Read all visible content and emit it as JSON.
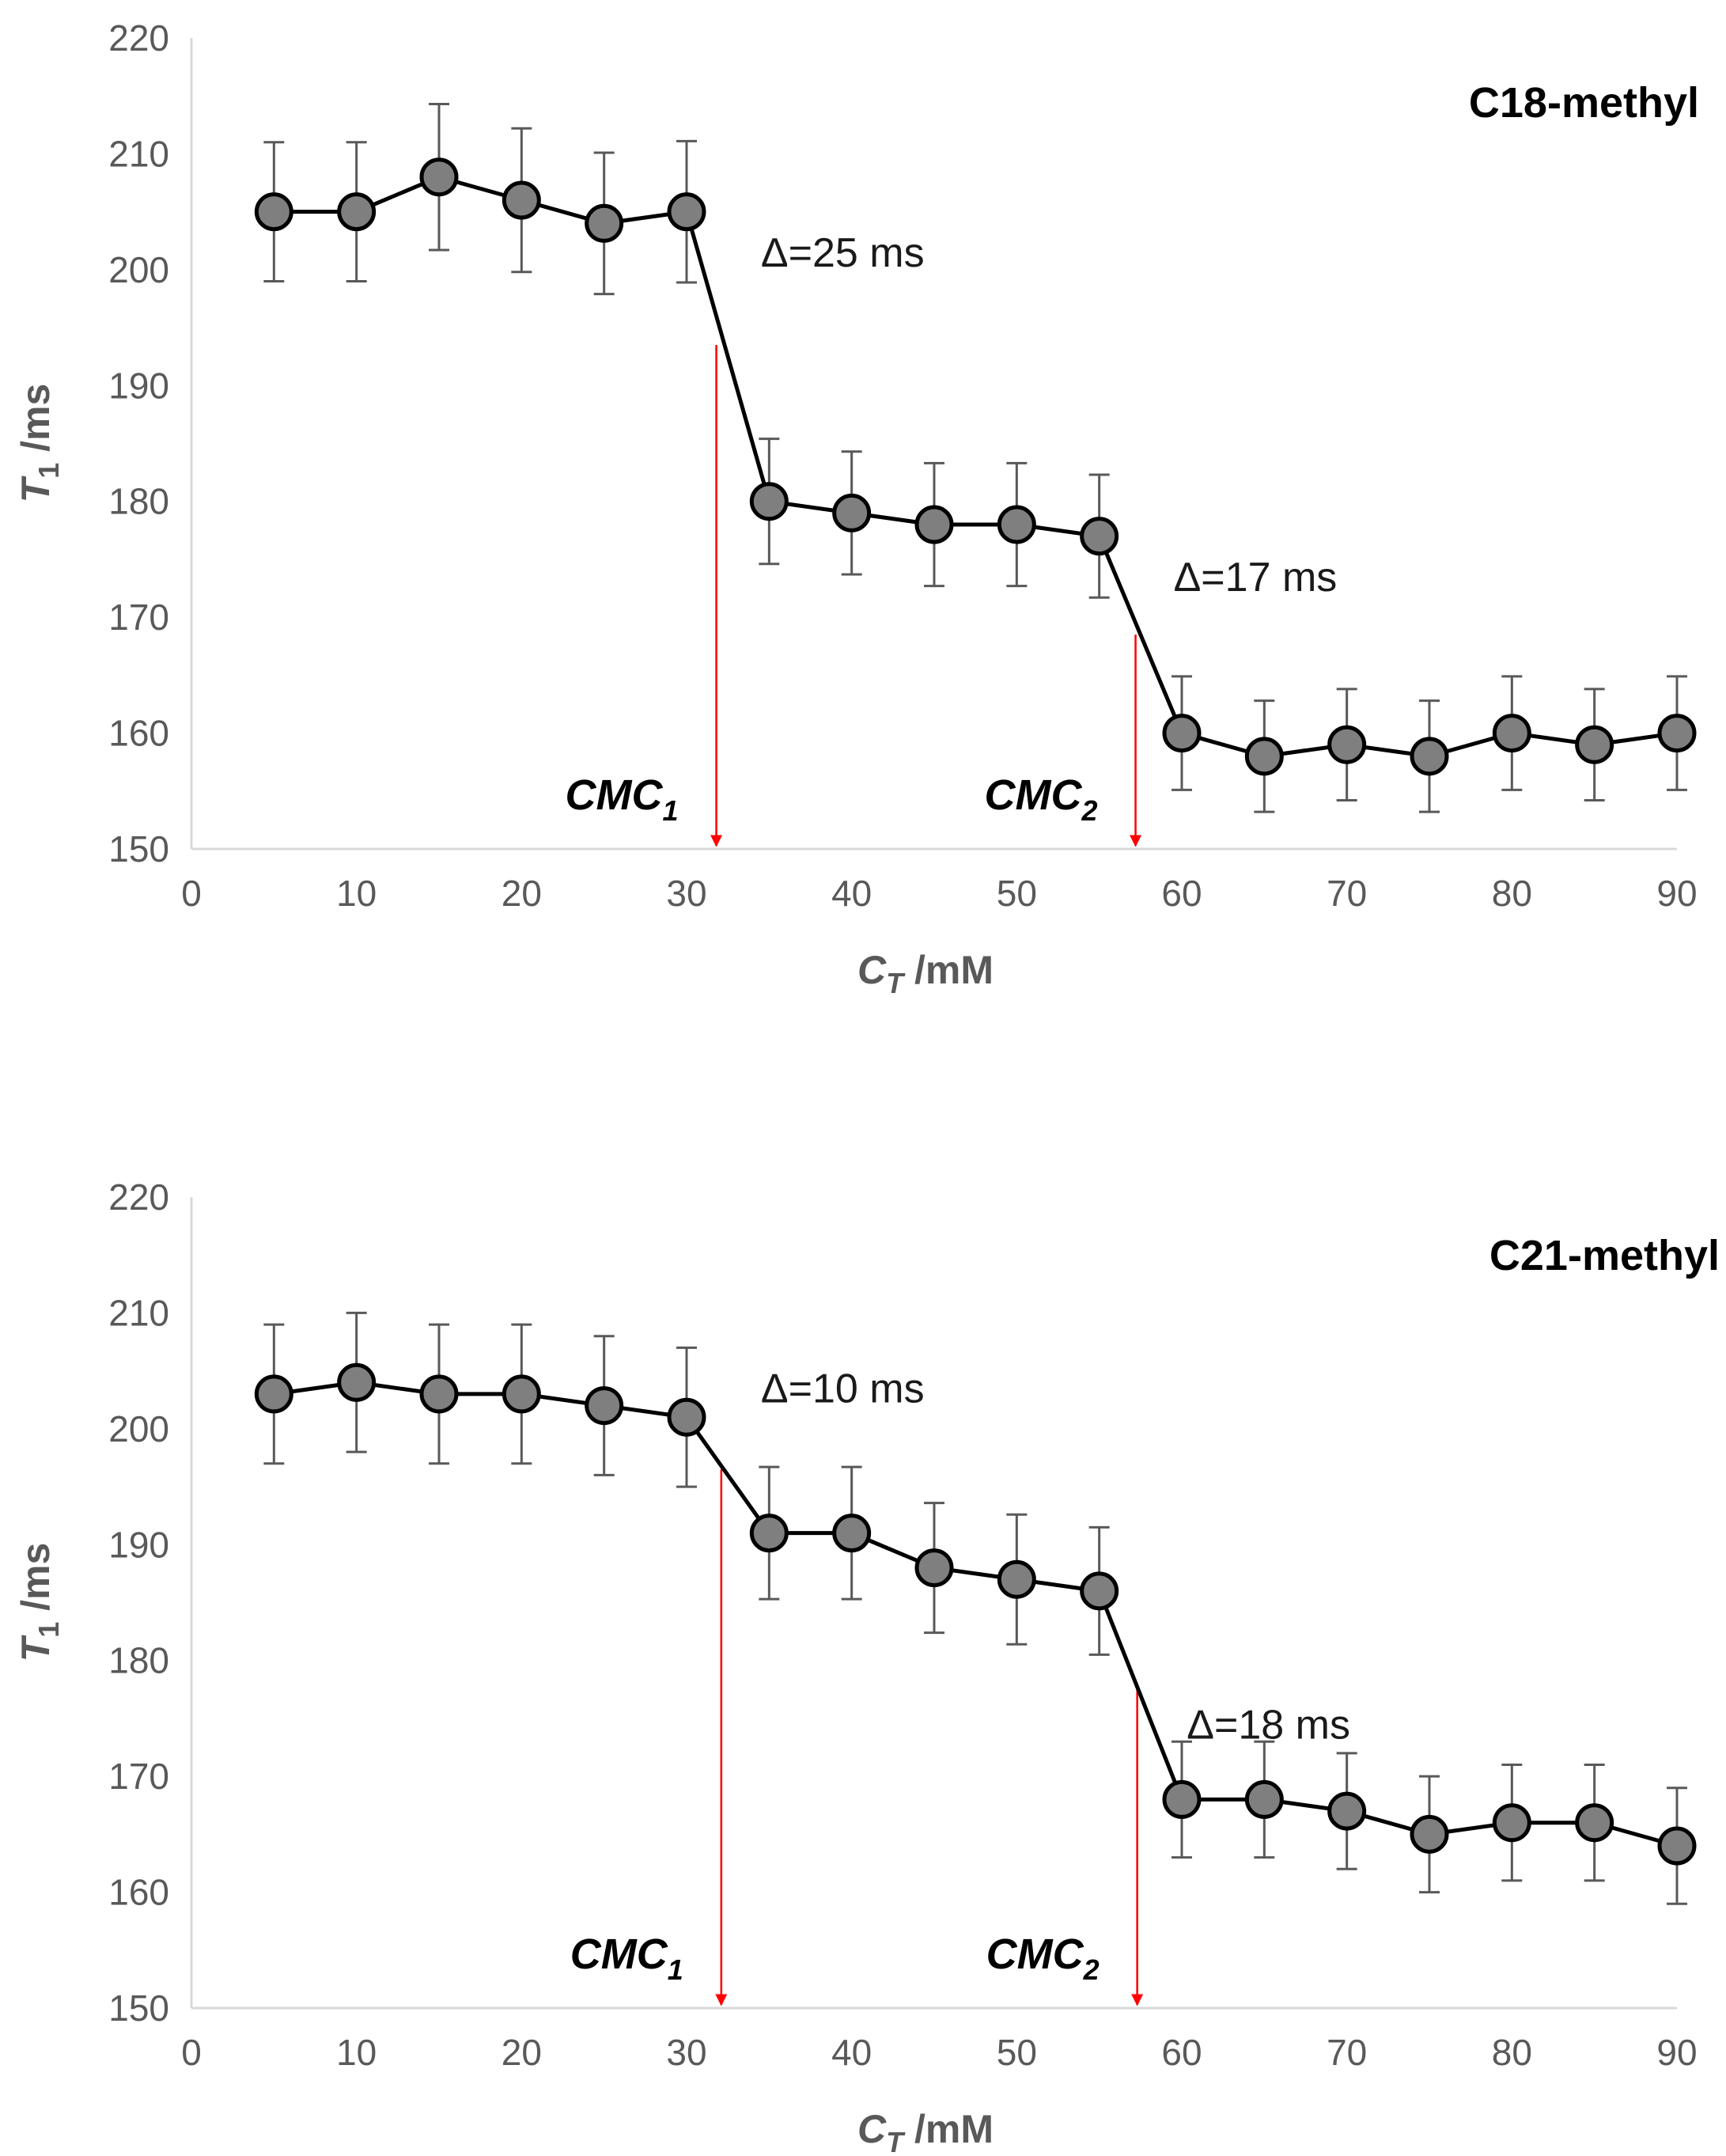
{
  "chart_data": [
    {
      "type": "line",
      "title": "C18-methyl",
      "xlabel": {
        "main": "C",
        "sub": "T",
        "unit": " /mM"
      },
      "ylabel": {
        "main": "T",
        "sub": "1",
        "unit": " /ms"
      },
      "xlim": [
        0,
        90
      ],
      "ylim": [
        150,
        220
      ],
      "xticks": [
        0,
        10,
        20,
        30,
        40,
        50,
        60,
        70,
        80,
        90
      ],
      "yticks": [
        150,
        160,
        170,
        180,
        190,
        200,
        210,
        220
      ],
      "grid": false,
      "series": [
        {
          "name": "T1",
          "x": [
            5,
            10,
            15,
            20,
            25,
            30,
            35,
            40,
            45,
            50,
            55,
            60,
            65,
            70,
            75,
            80,
            85,
            90
          ],
          "y": [
            205,
            205,
            208,
            206,
            204,
            205,
            180,
            179,
            178,
            178,
            177,
            160,
            158,
            159,
            158,
            160,
            159,
            160
          ],
          "error": [
            6,
            6,
            6.3,
            6.2,
            6.1,
            6.1,
            5.4,
            5.3,
            5.3,
            5.3,
            5.3,
            4.9,
            4.8,
            4.8,
            4.8,
            4.9,
            4.8,
            4.9
          ]
        }
      ],
      "annotations": [
        {
          "text": "Δ=25 ms",
          "x": 34.5,
          "y": 201.5
        },
        {
          "text": "Δ=17 ms",
          "x": 59.5,
          "y": 173.5
        }
      ],
      "cmc_markers": [
        {
          "label": "CMC",
          "sub": "1",
          "x": 31.8,
          "y_top": 193.5
        },
        {
          "label": "CMC",
          "sub": "2",
          "x": 57.2,
          "y_top": 168.5
        }
      ],
      "marker_color": "#7f7f7f",
      "line_color": "#000000",
      "cmc_color": "#ff0000"
    },
    {
      "type": "line",
      "title": "C21-methyl",
      "xlabel": {
        "main": "C",
        "sub": "T",
        "unit": " /mM"
      },
      "ylabel": {
        "main": "T",
        "sub": "1",
        "unit": " /ms"
      },
      "xlim": [
        0,
        90
      ],
      "ylim": [
        150,
        220
      ],
      "xticks": [
        0,
        10,
        20,
        30,
        40,
        50,
        60,
        70,
        80,
        90
      ],
      "yticks": [
        150,
        160,
        170,
        180,
        190,
        200,
        210,
        220
      ],
      "grid": false,
      "series": [
        {
          "name": "T1",
          "x": [
            5,
            10,
            15,
            20,
            25,
            30,
            35,
            40,
            45,
            50,
            55,
            60,
            65,
            70,
            75,
            80,
            85,
            90
          ],
          "y": [
            203,
            204,
            203,
            203,
            202,
            201,
            191,
            191,
            188,
            187,
            186,
            168,
            168,
            167,
            165,
            166,
            166,
            164
          ],
          "error": [
            6,
            6,
            6,
            6,
            6,
            6,
            5.7,
            5.7,
            5.6,
            5.6,
            5.5,
            5,
            5,
            5,
            5,
            5,
            5,
            5
          ]
        }
      ],
      "annotations": [
        {
          "text": "Δ=10 ms",
          "x": 34.5,
          "y": 203.5
        },
        {
          "text": "Δ=18 ms",
          "x": 60.3,
          "y": 174.5
        }
      ],
      "cmc_markers": [
        {
          "label": "CMC",
          "sub": "1",
          "x": 32.1,
          "y_top": 196.5
        },
        {
          "label": "CMC",
          "sub": "2",
          "x": 57.3,
          "y_top": 177.5
        }
      ],
      "marker_color": "#7f7f7f",
      "line_color": "#000000",
      "cmc_color": "#ff0000"
    }
  ]
}
